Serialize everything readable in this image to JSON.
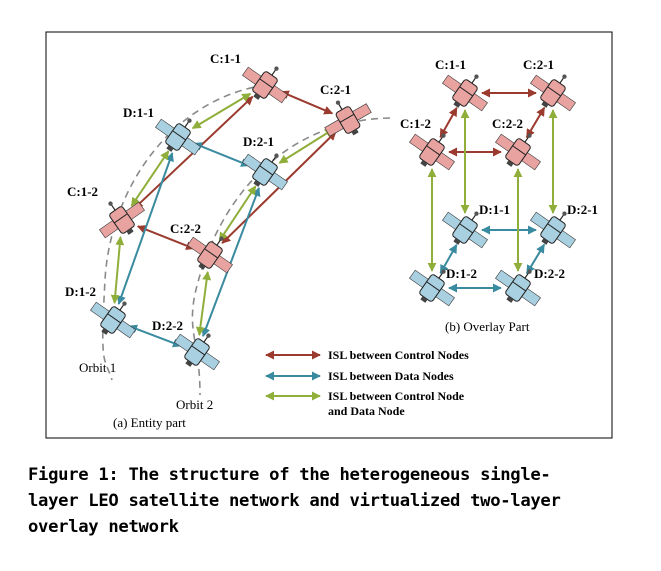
{
  "entity": {
    "nodes": [
      {
        "id": "C:1-1",
        "label": "C:1-1",
        "kind": "control"
      },
      {
        "id": "C:2-1",
        "label": "C:2-1",
        "kind": "control"
      },
      {
        "id": "D:1-1",
        "label": "D:1-1",
        "kind": "data"
      },
      {
        "id": "D:2-1",
        "label": "D:2-1",
        "kind": "data"
      },
      {
        "id": "C:1-2",
        "label": "C:1-2",
        "kind": "control"
      },
      {
        "id": "C:2-2",
        "label": "C:2-2",
        "kind": "control"
      },
      {
        "id": "D:1-2",
        "label": "D:1-2",
        "kind": "data"
      },
      {
        "id": "D:2-2",
        "label": "D:2-2",
        "kind": "data"
      }
    ],
    "orbit1_label": "Orbit 1",
    "orbit2_label": "Orbit 2",
    "caption": "(a) Entity part"
  },
  "overlay": {
    "nodes": [
      {
        "id": "C:1-1",
        "label": "C:1-1",
        "kind": "control"
      },
      {
        "id": "C:2-1",
        "label": "C:2-1",
        "kind": "control"
      },
      {
        "id": "C:1-2",
        "label": "C:1-2",
        "kind": "control"
      },
      {
        "id": "C:2-2",
        "label": "C:2-2",
        "kind": "control"
      },
      {
        "id": "D:1-1",
        "label": "D:1-1",
        "kind": "data"
      },
      {
        "id": "D:2-1",
        "label": "D:2-1",
        "kind": "data"
      },
      {
        "id": "D:1-2",
        "label": "D:1-2",
        "kind": "data"
      },
      {
        "id": "D:2-2",
        "label": "D:2-2",
        "kind": "data"
      }
    ],
    "caption": "(b) Overlay Part"
  },
  "links": {
    "entity": [
      {
        "from": "C:1-1",
        "to": "C:2-1",
        "type": "control"
      },
      {
        "from": "C:1-1",
        "to": "C:1-2",
        "type": "control"
      },
      {
        "from": "C:2-1",
        "to": "C:2-2",
        "type": "control"
      },
      {
        "from": "C:1-2",
        "to": "C:2-2",
        "type": "control"
      },
      {
        "from": "D:1-1",
        "to": "D:2-1",
        "type": "data"
      },
      {
        "from": "D:1-1",
        "to": "D:1-2",
        "type": "data"
      },
      {
        "from": "D:2-1",
        "to": "D:2-2",
        "type": "data"
      },
      {
        "from": "D:1-2",
        "to": "D:2-2",
        "type": "data"
      },
      {
        "from": "C:1-1",
        "to": "D:1-1",
        "type": "mixed"
      },
      {
        "from": "C:2-1",
        "to": "D:2-1",
        "type": "mixed"
      },
      {
        "from": "D:1-1",
        "to": "C:1-2",
        "type": "mixed"
      },
      {
        "from": "D:2-1",
        "to": "C:2-2",
        "type": "mixed"
      },
      {
        "from": "C:1-2",
        "to": "D:1-2",
        "type": "mixed"
      },
      {
        "from": "C:2-2",
        "to": "D:2-2",
        "type": "mixed"
      }
    ],
    "overlay": [
      {
        "from": "C:1-1",
        "to": "C:2-1",
        "type": "control"
      },
      {
        "from": "C:1-2",
        "to": "C:2-2",
        "type": "control"
      },
      {
        "from": "C:1-1",
        "to": "C:1-2",
        "type": "control"
      },
      {
        "from": "C:2-1",
        "to": "C:2-2",
        "type": "control"
      },
      {
        "from": "D:1-1",
        "to": "D:2-1",
        "type": "data"
      },
      {
        "from": "D:1-2",
        "to": "D:2-2",
        "type": "data"
      },
      {
        "from": "D:1-1",
        "to": "D:1-2",
        "type": "data"
      },
      {
        "from": "D:2-1",
        "to": "D:2-2",
        "type": "data"
      },
      {
        "from": "C:1-1",
        "to": "D:1-1",
        "type": "mixed"
      },
      {
        "from": "C:2-1",
        "to": "D:2-1",
        "type": "mixed"
      },
      {
        "from": "C:1-2",
        "to": "D:1-2",
        "type": "mixed"
      },
      {
        "from": "C:2-2",
        "to": "D:2-2",
        "type": "mixed"
      }
    ]
  },
  "legend": {
    "control": "ISL between Control Nodes",
    "data": "ISL between Data Nodes",
    "mixed_line1": "ISL between Control Node",
    "mixed_line2": "and Data Node"
  },
  "colors": {
    "control": "#9b3a2e",
    "data": "#3a8aa0",
    "mixed": "#8fae3a",
    "control_fill": "#e8a3a0",
    "data_fill": "#a9d0e0"
  },
  "caption": {
    "line1": "Figure 1: The structure of the heterogeneous single-",
    "line2": "layer LEO satellite network and virtualized two-layer",
    "line3": "overlay network"
  }
}
